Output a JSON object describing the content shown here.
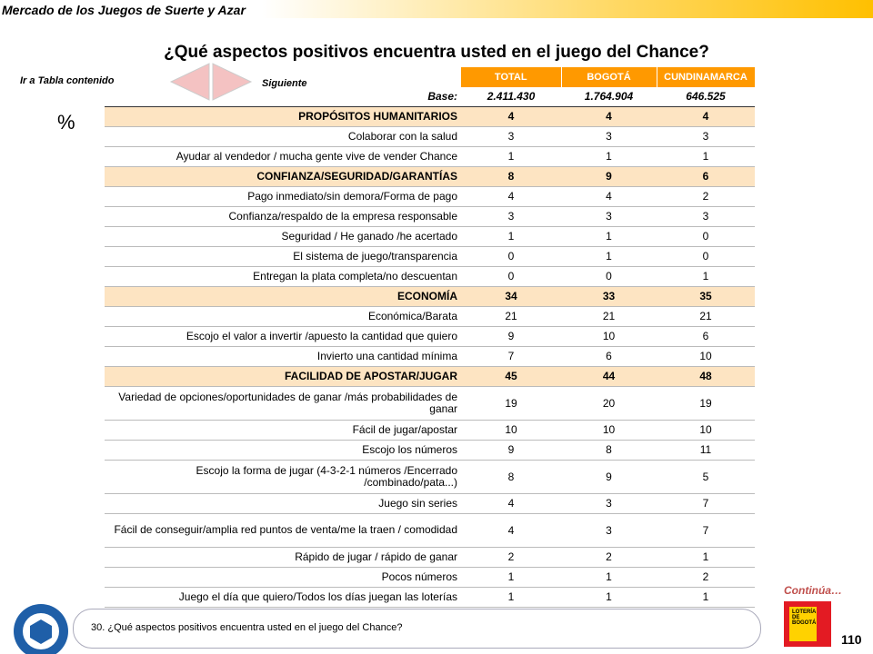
{
  "header": {
    "brand": "Mercado de los Juegos de Suerte y Azar",
    "title": "¿Qué aspectos positivos encuentra usted en el juego del Chance?"
  },
  "nav": {
    "back": "Ir a Tabla contenido",
    "next": "Siguiente"
  },
  "unit": "%",
  "table": {
    "columns": [
      "TOTAL",
      "BOGOTÁ",
      "CUNDINAMARCA"
    ],
    "base": {
      "label": "Base:",
      "values": [
        "2.411.430",
        "1.764.904",
        "646.525"
      ]
    },
    "rows": [
      {
        "label": "PROPÓSITOS HUMANITARIOS",
        "values": [
          4,
          4,
          4
        ],
        "section": true
      },
      {
        "label": "Colaborar con la salud",
        "values": [
          3,
          3,
          3
        ]
      },
      {
        "label": "Ayudar al vendedor / mucha gente vive de vender Chance",
        "values": [
          1,
          1,
          1
        ]
      },
      {
        "label": "CONFIANZA/SEGURIDAD/GARANTÍAS",
        "values": [
          8,
          9,
          6
        ],
        "section": true
      },
      {
        "label": "Pago inmediato/sin demora/Forma de pago",
        "values": [
          4,
          4,
          2
        ]
      },
      {
        "label": "Confianza/respaldo de la empresa responsable",
        "values": [
          3,
          3,
          3
        ]
      },
      {
        "label": "Seguridad / He ganado /he acertado",
        "values": [
          1,
          1,
          0
        ]
      },
      {
        "label": "El sistema de juego/transparencia",
        "values": [
          0,
          1,
          0
        ]
      },
      {
        "label": "Entregan la plata completa/no descuentan",
        "values": [
          0,
          0,
          1
        ]
      },
      {
        "label": "ECONOMÍA",
        "values": [
          34,
          33,
          35
        ],
        "section": true
      },
      {
        "label": "Económica/Barata",
        "values": [
          21,
          21,
          21
        ]
      },
      {
        "label": "Escojo el valor a invertir /apuesto la cantidad que quiero",
        "values": [
          9,
          10,
          6
        ]
      },
      {
        "label": "Invierto una cantidad mínima",
        "values": [
          7,
          6,
          10
        ]
      },
      {
        "label": "FACILIDAD DE APOSTAR/JUGAR",
        "values": [
          45,
          44,
          48
        ],
        "section": true
      },
      {
        "label": "Variedad de opciones/oportunidades de ganar /más probabilidades de ganar",
        "values": [
          19,
          20,
          19
        ]
      },
      {
        "label": "Fácil de jugar/apostar",
        "values": [
          10,
          10,
          10
        ]
      },
      {
        "label": "Escojo los números",
        "values": [
          9,
          8,
          11
        ]
      },
      {
        "label": "Escojo la forma de jugar (4-3-2-1 números /Encerrado /combinado/pata...)",
        "values": [
          8,
          9,
          5
        ]
      },
      {
        "label": "Juego sin series",
        "values": [
          4,
          3,
          7
        ]
      },
      {
        "label": "Fácil de conseguir/amplia red puntos de venta/me la traen / comodidad",
        "values": [
          4,
          3,
          7
        ]
      },
      {
        "label": "Rápido de jugar / rápido de ganar",
        "values": [
          2,
          2,
          1
        ]
      },
      {
        "label": "Pocos números",
        "values": [
          1,
          1,
          2
        ]
      },
      {
        "label": "Juego el día que quiero/Todos los días juegan las loterías",
        "values": [
          1,
          1,
          1
        ]
      }
    ]
  },
  "footer": {
    "continue": "Continúa…",
    "question": "30. ¿Qué aspectos positivos encuentra usted en el juego del Chance?",
    "page_number": "110",
    "logo": "LOTERÍA DE BOGOTÁ"
  }
}
